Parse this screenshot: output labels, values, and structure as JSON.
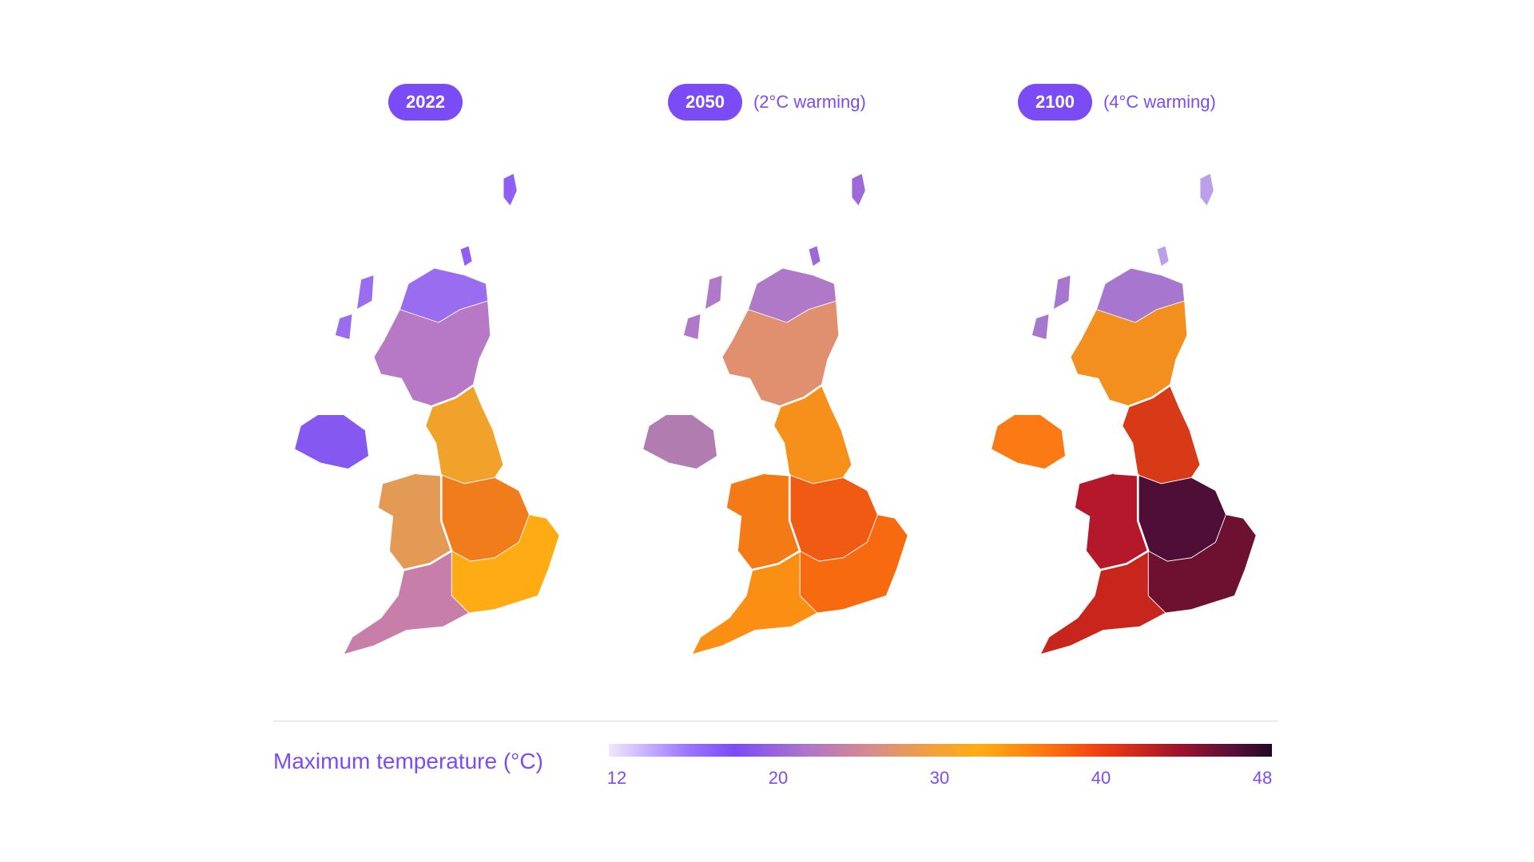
{
  "panels": [
    {
      "year": "2022",
      "note": ""
    },
    {
      "year": "2050",
      "note": "(2°C warming)"
    },
    {
      "year": "2100",
      "note": "(4°C warming)"
    }
  ],
  "legend": {
    "title": "Maximum temperature (°C)",
    "ticks": [
      "12",
      "20",
      "30",
      "40",
      "48"
    ],
    "range": [
      12,
      48
    ]
  },
  "colors": {
    "accent": "#7b4cf5",
    "scale": [
      "#efe8ff",
      "#7b4cf5",
      "#d98d88",
      "#ffad12",
      "#ee3a12",
      "#240825"
    ]
  },
  "regions_fill": [
    {
      "n_scotland": "#9a6cf0",
      "s_scotland": "#b779c6",
      "n_ireland": "#8558f2",
      "n_england": "#f0a22a",
      "midlands": "#f17c1b",
      "south_east": "#ffac14",
      "wales": "#e39a55",
      "south_west": "#c77ea8",
      "islands": "#8f5ff5"
    },
    {
      "n_scotland": "#b079c8",
      "s_scotland": "#e08f6f",
      "n_ireland": "#b17cb0",
      "n_england": "#f7901a",
      "midlands": "#f05a13",
      "south_east": "#f76a10",
      "wales": "#f47a16",
      "south_west": "#fa8f14",
      "islands": "#9d68d8"
    },
    {
      "n_scotland": "#a777d0",
      "s_scotland": "#f38f1f",
      "n_ireland": "#fb7a14",
      "n_england": "#d83a18",
      "midlands": "#4e0e35",
      "south_east": "#6e1030",
      "wales": "#b5182a",
      "south_west": "#c8261c",
      "islands": "#b9a0e8"
    }
  ]
}
